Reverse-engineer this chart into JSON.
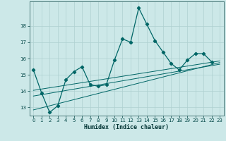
{
  "xlabel": "Humidex (Indice chaleur)",
  "x_values": [
    0,
    1,
    2,
    3,
    4,
    5,
    6,
    7,
    8,
    9,
    10,
    11,
    12,
    13,
    14,
    15,
    16,
    17,
    18,
    19,
    20,
    21,
    22,
    23
  ],
  "y_main": [
    15.3,
    13.9,
    12.7,
    13.1,
    14.7,
    15.2,
    15.5,
    14.4,
    14.3,
    14.4,
    15.9,
    17.2,
    17.0,
    19.1,
    18.1,
    17.1,
    16.4,
    15.7,
    15.3,
    15.9,
    16.3,
    16.3,
    15.8,
    null
  ],
  "bg_color": "#cce8e8",
  "line_color": "#006666",
  "grid_color": "#aed0d0",
  "ylim": [
    12.5,
    19.5
  ],
  "xlim": [
    -0.5,
    23.5
  ],
  "yticks": [
    13,
    14,
    15,
    16,
    17,
    18
  ],
  "xticks": [
    0,
    1,
    2,
    3,
    4,
    5,
    6,
    7,
    8,
    9,
    10,
    11,
    12,
    13,
    14,
    15,
    16,
    17,
    18,
    19,
    20,
    21,
    22,
    23
  ],
  "regression_lines": [
    {
      "start_x": 0,
      "start_y": 14.05,
      "end_x": 23,
      "end_y": 15.85
    },
    {
      "start_x": 0,
      "start_y": 13.7,
      "end_x": 23,
      "end_y": 15.65
    },
    {
      "start_x": 0,
      "start_y": 12.85,
      "end_x": 23,
      "end_y": 15.75
    }
  ],
  "label_fontsize": 5.0,
  "xlabel_fontsize": 6.0
}
